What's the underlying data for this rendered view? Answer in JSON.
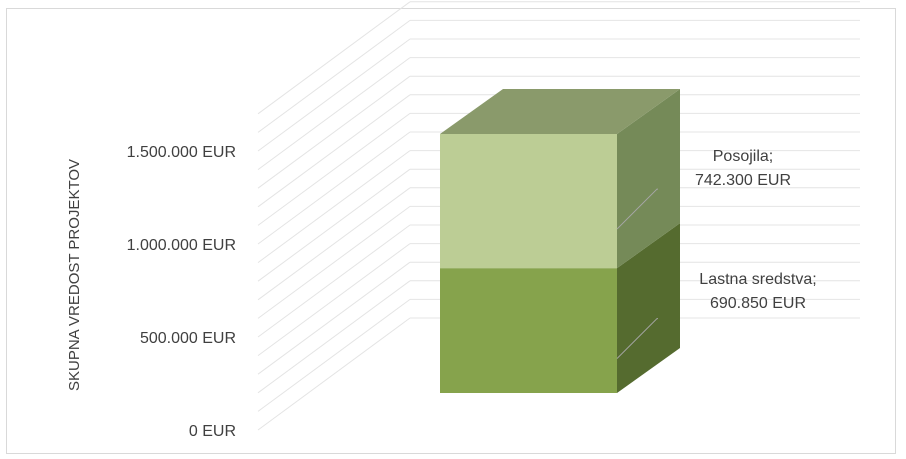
{
  "chart_data": {
    "type": "bar",
    "stacked": true,
    "style": "3d-column",
    "categories": [
      ""
    ],
    "series": [
      {
        "name": "Lastna sredstva",
        "values": [
          690850
        ],
        "label_lines": [
          "Lastna sredstva;",
          "690.850 EUR"
        ]
      },
      {
        "name": "Posojila",
        "values": [
          742300
        ],
        "label_lines": [
          "Posojila;",
          "742.300 EUR"
        ]
      }
    ],
    "ylabel": "SKUPNA VREDOST PROJEKTOV",
    "ylim": [
      0,
      1700000
    ],
    "yticks": [
      0,
      500000,
      1000000,
      1500000
    ],
    "ytick_labels": [
      "0 EUR",
      "500.000 EUR",
      "1.000.000 EUR",
      "1.500.000 EUR"
    ],
    "grid": true,
    "legend": "none"
  },
  "colors": {
    "lastna_front": "#86a34c",
    "lastna_side": "#556b2f",
    "posojila_front": "#bccd95",
    "posojila_side": "#758a58",
    "top": "#8a9a6b",
    "grid": "#e4e4e4",
    "leader": "#a6a6a6"
  }
}
